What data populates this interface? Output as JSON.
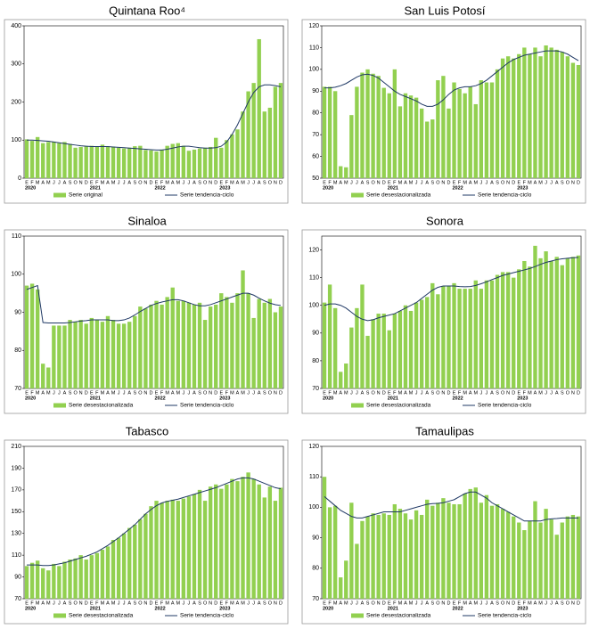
{
  "chart_data": [
    {
      "type": "combo",
      "title": "Quintana Roo⁴",
      "categories": [
        "E",
        "F",
        "M",
        "A",
        "M",
        "J",
        "J",
        "A",
        "S",
        "O",
        "N",
        "D",
        "E",
        "F",
        "M",
        "A",
        "M",
        "J",
        "J",
        "A",
        "S",
        "O",
        "N",
        "D",
        "E",
        "F",
        "M",
        "A",
        "M",
        "J",
        "J",
        "A",
        "S",
        "O",
        "N",
        "D",
        "E",
        "F",
        "M",
        "A",
        "M",
        "J",
        "J",
        "A",
        "S",
        "O",
        "N",
        "D"
      ],
      "year_labels": [
        "2020",
        "2021",
        "2022",
        "2023"
      ],
      "ylim": [
        0,
        400
      ],
      "yticks": [
        0,
        100,
        200,
        300,
        400
      ],
      "series": [
        {
          "name": "Serie original",
          "kind": "bar",
          "color": "#92d050",
          "values": [
            102,
            98,
            108,
            92,
            95,
            96,
            92,
            95,
            90,
            80,
            82,
            84,
            85,
            82,
            88,
            84,
            83,
            80,
            78,
            80,
            84,
            85,
            74,
            73,
            70,
            75,
            85,
            90,
            92,
            85,
            72,
            75,
            78,
            80,
            82,
            106,
            80,
            100,
            115,
            128,
            175,
            228,
            250,
            365,
            175,
            185,
            240,
            250
          ]
        },
        {
          "name": "Serie tendencia-ciclo",
          "kind": "line",
          "color": "#1f3864",
          "values": [
            100,
            100,
            99,
            98,
            97,
            95,
            93,
            91,
            89,
            87,
            85,
            84,
            83,
            83,
            83,
            83,
            82,
            81,
            80,
            79,
            78,
            77,
            76,
            75,
            74,
            74,
            76,
            79,
            82,
            84,
            84,
            82,
            80,
            79,
            79,
            80,
            84,
            95,
            115,
            140,
            170,
            200,
            225,
            240,
            245,
            245,
            243,
            240
          ]
        }
      ]
    },
    {
      "type": "combo",
      "title": "San Luis Potosí",
      "categories": [
        "E",
        "F",
        "M",
        "A",
        "M",
        "J",
        "J",
        "A",
        "S",
        "O",
        "N",
        "D",
        "E",
        "F",
        "M",
        "A",
        "M",
        "J",
        "J",
        "A",
        "S",
        "O",
        "N",
        "D",
        "E",
        "F",
        "M",
        "A",
        "M",
        "J",
        "J",
        "A",
        "S",
        "O",
        "N",
        "D",
        "E",
        "F",
        "M",
        "A",
        "M",
        "J",
        "J",
        "A",
        "S",
        "O",
        "N",
        "D"
      ],
      "year_labels": [
        "2020",
        "2021",
        "2022",
        "2023"
      ],
      "ylim": [
        50,
        120
      ],
      "yticks": [
        50,
        60,
        70,
        80,
        90,
        100,
        110,
        120
      ],
      "series": [
        {
          "name": "Serie desestacionalizada",
          "kind": "bar",
          "color": "#92d050",
          "values": [
            92,
            92,
            90,
            55.5,
            55,
            79,
            92,
            98.5,
            100,
            98,
            97,
            91.5,
            89,
            100,
            83,
            89,
            88,
            87,
            82,
            76,
            77,
            95,
            97,
            82,
            94,
            91,
            89,
            92,
            84,
            95,
            94,
            94,
            100,
            105,
            106,
            105,
            107,
            110,
            107,
            110,
            106,
            111,
            110,
            109,
            108,
            106,
            103,
            102
          ]
        },
        {
          "name": "Serie tendencia-ciclo",
          "kind": "line",
          "color": "#1f3864",
          "values": [
            91.5,
            91.5,
            91.8,
            92.5,
            93.5,
            95,
            96.5,
            97.5,
            97.8,
            97.2,
            96,
            94,
            92,
            90,
            88.5,
            87.5,
            86.5,
            85.5,
            84,
            83,
            83,
            84,
            86,
            88.5,
            90.5,
            91.5,
            92,
            92,
            92.5,
            93.5,
            95,
            97,
            99,
            101,
            103,
            104.5,
            105.5,
            106.5,
            107,
            107.5,
            108,
            108.5,
            108.5,
            108.5,
            108,
            107,
            105.5,
            104
          ]
        }
      ]
    },
    {
      "type": "combo",
      "title": "Sinaloa",
      "categories": [
        "E",
        "F",
        "M",
        "A",
        "M",
        "J",
        "J",
        "A",
        "S",
        "O",
        "N",
        "D",
        "E",
        "F",
        "M",
        "A",
        "M",
        "J",
        "J",
        "A",
        "S",
        "O",
        "N",
        "D",
        "E",
        "F",
        "M",
        "A",
        "M",
        "J",
        "J",
        "A",
        "S",
        "O",
        "N",
        "D",
        "E",
        "F",
        "M",
        "A",
        "M",
        "J",
        "J",
        "A",
        "S",
        "O",
        "N",
        "D"
      ],
      "year_labels": [
        "2020",
        "2021",
        "2022",
        "2023"
      ],
      "ylim": [
        70,
        110
      ],
      "yticks": [
        70,
        80,
        90,
        100,
        110
      ],
      "series": [
        {
          "name": "Serie desestacionalizada",
          "kind": "bar",
          "color": "#92d050",
          "values": [
            97,
            97.5,
            96,
            76.5,
            75.5,
            86.5,
            86.5,
            86.5,
            88,
            87.5,
            88,
            87,
            88.5,
            88,
            87.5,
            89,
            88,
            87,
            87,
            87.5,
            89,
            91.5,
            91,
            92,
            93,
            92,
            94,
            96.5,
            93,
            93,
            92.5,
            92,
            92.5,
            88,
            91.5,
            92,
            95,
            94,
            92.5,
            95,
            101,
            95,
            88.5,
            93.5,
            92.5,
            93.5,
            90,
            91.5
          ]
        },
        {
          "name": "Serie tendencia-ciclo",
          "kind": "line",
          "color": "#1f3864",
          "values": [
            96,
            96.5,
            97,
            87.3,
            87.2,
            87.2,
            87.2,
            87.2,
            87.3,
            87.5,
            87.7,
            87.8,
            88,
            88,
            88,
            88,
            87.8,
            87.8,
            88,
            88.5,
            89.3,
            90.2,
            91,
            91.8,
            92.3,
            92.7,
            93,
            93.3,
            93.3,
            93,
            92.5,
            92,
            91.7,
            91.7,
            92,
            92.5,
            93,
            93.5,
            94,
            94.5,
            95,
            95,
            94.5,
            93.7,
            93,
            92.4,
            92,
            91.8
          ]
        }
      ]
    },
    {
      "type": "combo",
      "title": "Sonora",
      "categories": [
        "E",
        "F",
        "M",
        "A",
        "M",
        "J",
        "J",
        "A",
        "S",
        "O",
        "N",
        "D",
        "E",
        "F",
        "M",
        "A",
        "M",
        "J",
        "J",
        "A",
        "S",
        "O",
        "N",
        "D",
        "E",
        "F",
        "M",
        "A",
        "M",
        "J",
        "J",
        "A",
        "S",
        "O",
        "N",
        "D",
        "E",
        "F",
        "M",
        "A",
        "M",
        "J",
        "J",
        "A",
        "S",
        "O",
        "N",
        "D"
      ],
      "year_labels": [
        "2020",
        "2021",
        "2022",
        "2023"
      ],
      "ylim": [
        70,
        125
      ],
      "yticks": [
        70,
        80,
        90,
        100,
        110,
        120
      ],
      "series": [
        {
          "name": "Serie desestacionalizada",
          "kind": "bar",
          "color": "#92d050",
          "values": [
            101,
            107.5,
            99,
            76,
            79,
            92,
            99,
            107.5,
            89,
            95,
            97,
            97,
            91,
            97,
            98,
            100,
            98,
            101,
            102,
            103,
            108,
            104,
            107,
            107,
            108,
            106,
            106,
            106,
            109,
            106,
            109,
            109,
            111,
            112,
            112,
            110,
            113,
            116,
            114,
            121.5,
            117,
            119.5,
            116,
            117.5,
            114.5,
            117,
            117.5,
            118
          ]
        },
        {
          "name": "Serie tendencia-ciclo",
          "kind": "line",
          "color": "#1f3864",
          "values": [
            100,
            100.5,
            100.5,
            100,
            99,
            97.5,
            96,
            95,
            94.5,
            94.8,
            95.5,
            96,
            96.5,
            97,
            98,
            99,
            100,
            101,
            102.5,
            104,
            105.5,
            106.5,
            107,
            107,
            107,
            106.8,
            106.7,
            106.8,
            107.2,
            107.8,
            108.5,
            109.3,
            110,
            110.8,
            111.3,
            111.8,
            112.3,
            112.8,
            113.3,
            114,
            114.8,
            115.5,
            116,
            116.5,
            116.8,
            117,
            117.2,
            117.3
          ]
        }
      ]
    },
    {
      "type": "combo",
      "title": "Tabasco",
      "categories": [
        "E",
        "F",
        "M",
        "A",
        "M",
        "J",
        "J",
        "A",
        "S",
        "O",
        "N",
        "D",
        "E",
        "F",
        "M",
        "A",
        "M",
        "J",
        "J",
        "A",
        "S",
        "O",
        "N",
        "D",
        "E",
        "F",
        "M",
        "A",
        "M",
        "J",
        "J",
        "A",
        "S",
        "O",
        "N",
        "D",
        "E",
        "F",
        "M",
        "A",
        "M",
        "J",
        "J",
        "A",
        "S",
        "O",
        "N",
        "D"
      ],
      "year_labels": [
        "2020",
        "2021",
        "2022",
        "2023"
      ],
      "ylim": [
        70,
        210
      ],
      "yticks": [
        70,
        90,
        110,
        130,
        150,
        170,
        190,
        210
      ],
      "series": [
        {
          "name": "Serie desestacionalizada",
          "kind": "bar",
          "color": "#92d050",
          "values": [
            100,
            103,
            105,
            98,
            96,
            102,
            100,
            104,
            106,
            107,
            110,
            106,
            110,
            112,
            115,
            118,
            124,
            126,
            130,
            135,
            138,
            143,
            148,
            155,
            160,
            158,
            160,
            161,
            160,
            162,
            164,
            166,
            170,
            160,
            173,
            175,
            171,
            175,
            180,
            178,
            182,
            186,
            180,
            175,
            163,
            173,
            160,
            172
          ]
        },
        {
          "name": "Serie tendencia-ciclo",
          "kind": "line",
          "color": "#1f3864",
          "values": [
            101,
            101,
            101,
            100.5,
            100.5,
            101,
            102,
            103,
            104.5,
            106,
            107.5,
            109,
            111,
            113,
            116,
            119,
            122.5,
            126,
            130,
            134,
            138,
            143,
            148,
            152,
            155.5,
            158,
            159.5,
            160.5,
            161.5,
            163,
            164.5,
            166,
            167.5,
            169,
            170.5,
            172,
            174,
            176,
            178,
            180,
            181,
            181,
            180,
            178,
            176,
            174,
            172,
            171
          ]
        }
      ]
    },
    {
      "type": "combo",
      "title": "Tamaulipas",
      "categories": [
        "E",
        "F",
        "M",
        "A",
        "M",
        "J",
        "J",
        "A",
        "S",
        "O",
        "N",
        "D",
        "E",
        "F",
        "M",
        "A",
        "M",
        "J",
        "J",
        "A",
        "S",
        "O",
        "N",
        "D",
        "E",
        "F",
        "M",
        "A",
        "M",
        "J",
        "J",
        "A",
        "S",
        "O",
        "N",
        "D",
        "E",
        "F",
        "M",
        "A",
        "M",
        "J",
        "J",
        "A",
        "S",
        "O",
        "N",
        "D"
      ],
      "year_labels": [
        "2020",
        "2021",
        "2022",
        "2023"
      ],
      "ylim": [
        70,
        120
      ],
      "yticks": [
        70,
        80,
        90,
        100,
        110,
        120
      ],
      "series": [
        {
          "name": "Serie desestacionalizada",
          "kind": "bar",
          "color": "#92d050",
          "values": [
            110,
            100,
            100.5,
            77,
            82.5,
            101.5,
            88,
            95.5,
            97,
            98,
            97.5,
            98,
            97.5,
            101,
            99.5,
            98,
            96,
            99,
            97.5,
            102.5,
            100.5,
            101.5,
            103,
            101.5,
            101,
            101,
            104.5,
            106,
            106.5,
            101.5,
            104,
            100.5,
            101,
            99.5,
            98.5,
            97,
            95,
            92.5,
            95.5,
            102,
            95,
            99.5,
            96,
            91,
            95,
            97,
            97.5,
            97
          ]
        },
        {
          "name": "Serie tendencia-ciclo",
          "kind": "line",
          "color": "#1f3864",
          "values": [
            103.5,
            102,
            100.5,
            99,
            98,
            97,
            96.5,
            96.5,
            97,
            97.5,
            98,
            98.5,
            98.5,
            98.5,
            98.5,
            99,
            99.5,
            100,
            100.5,
            101,
            101.2,
            101.3,
            101.5,
            102,
            102.5,
            103.5,
            104.5,
            105,
            105,
            104,
            103,
            101.5,
            100.5,
            99.5,
            98.5,
            97.5,
            96.5,
            95.5,
            95.5,
            95.5,
            95.5,
            96,
            96.2,
            96.3,
            96.5,
            96.5,
            96.5,
            96.5
          ]
        }
      ]
    }
  ]
}
